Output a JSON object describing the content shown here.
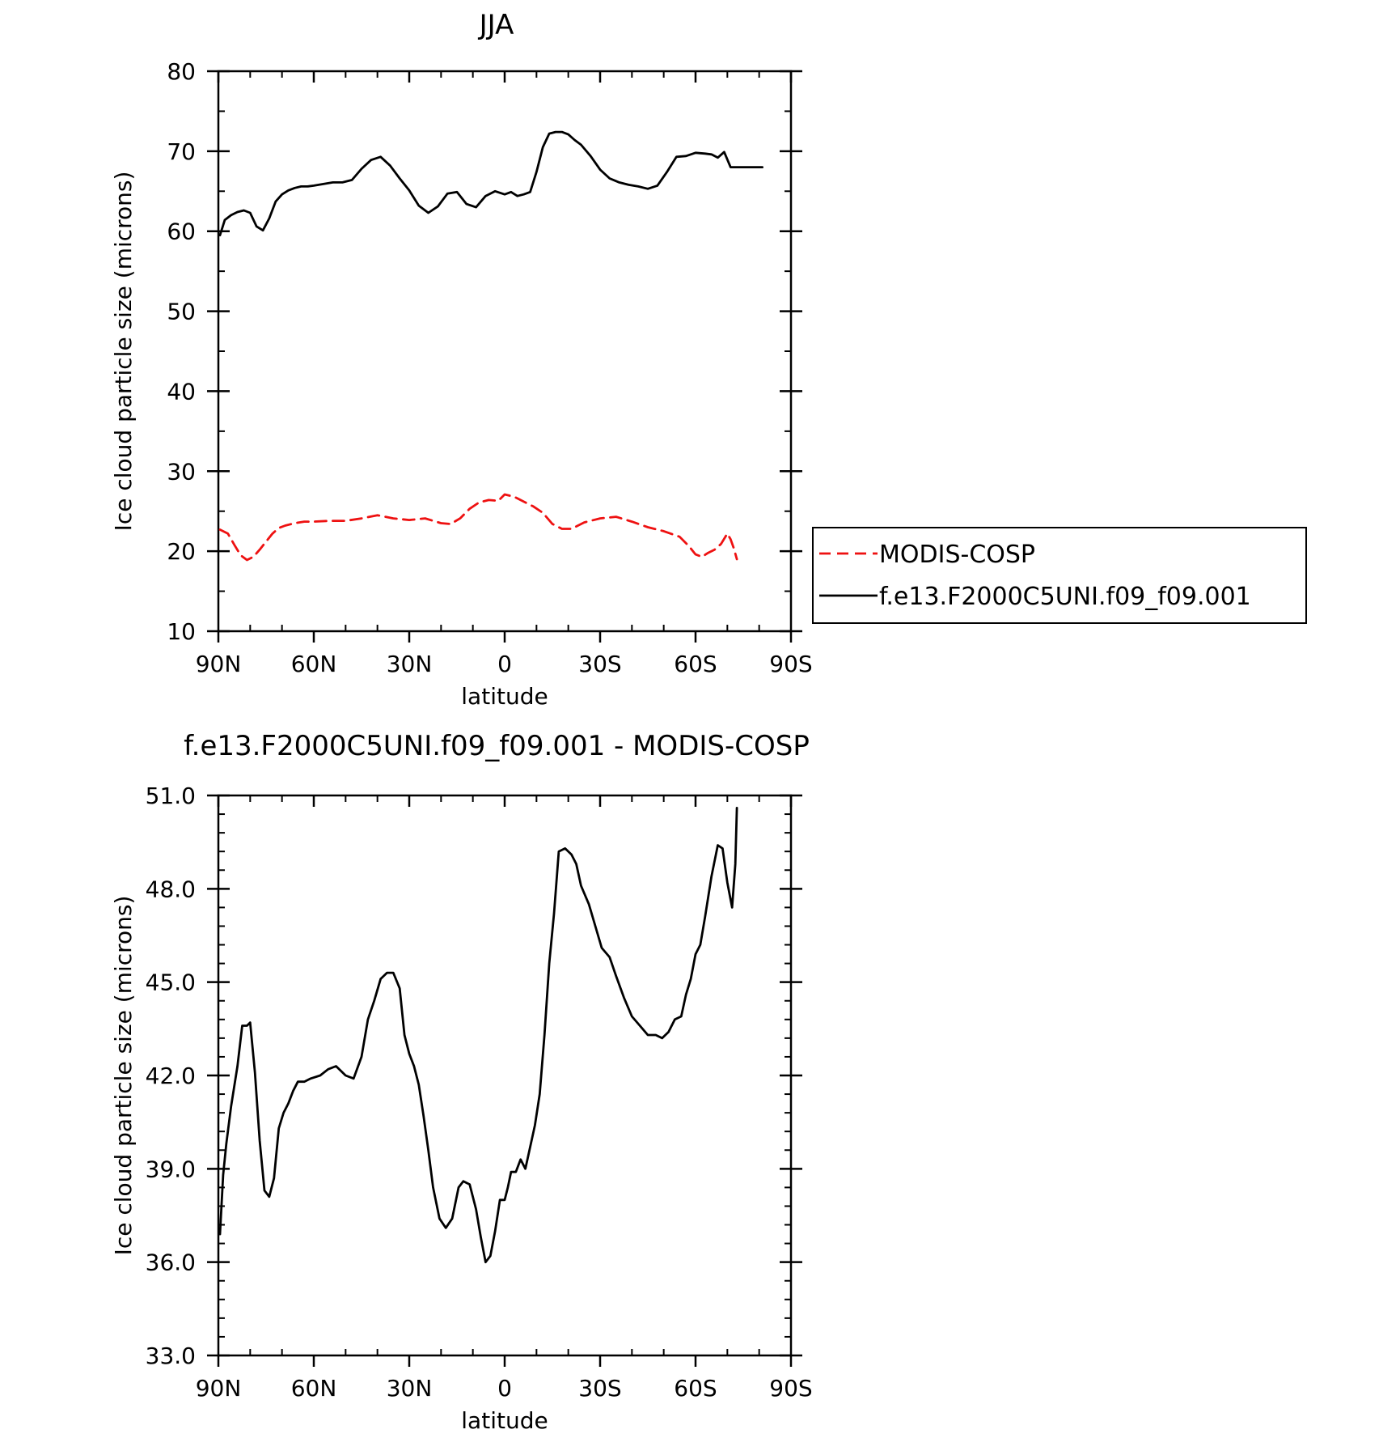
{
  "chart_data": [
    {
      "type": "line",
      "title": "JJA",
      "xlabel": "latitude",
      "ylabel": "Ice cloud particle size (microns)",
      "xlim": [
        90,
        -90
      ],
      "ylim": [
        10,
        80
      ],
      "x_ticks": [
        {
          "value": 90,
          "label": "90N"
        },
        {
          "value": 60,
          "label": "60N"
        },
        {
          "value": 30,
          "label": "30N"
        },
        {
          "value": 0,
          "label": "0"
        },
        {
          "value": -30,
          "label": "30S"
        },
        {
          "value": -60,
          "label": "60S"
        },
        {
          "value": -90,
          "label": "90S"
        }
      ],
      "y_ticks": [
        {
          "value": 10,
          "label": "10"
        },
        {
          "value": 20,
          "label": "20"
        },
        {
          "value": 30,
          "label": "30"
        },
        {
          "value": 40,
          "label": "40"
        },
        {
          "value": 50,
          "label": "50"
        },
        {
          "value": 60,
          "label": "60"
        },
        {
          "value": 70,
          "label": "70"
        },
        {
          "value": 80,
          "label": "80"
        }
      ],
      "legend": {
        "placement": "right"
      },
      "series": [
        {
          "name": "MODIS-COSP",
          "color": "#ee1111",
          "dash": "dashed",
          "x": [
            89.5,
            87,
            85,
            83,
            81,
            79,
            77,
            75,
            73,
            71,
            69,
            66,
            63,
            60,
            55,
            50,
            45,
            40,
            35,
            30,
            25,
            20,
            17,
            14,
            11,
            8,
            5,
            2,
            0,
            -3,
            -6,
            -9,
            -12,
            -15,
            -18,
            -21,
            -25,
            -30,
            -35,
            -40,
            -45,
            -50,
            -55,
            -58,
            -60,
            -62,
            -64,
            -66,
            -68,
            -70,
            -71,
            -72,
            -73
          ],
          "y": [
            22.7,
            22.2,
            20.8,
            19.5,
            18.9,
            19.3,
            20.2,
            21.2,
            22.2,
            22.9,
            23.2,
            23.5,
            23.7,
            23.7,
            23.8,
            23.8,
            24.1,
            24.5,
            24.1,
            23.9,
            24.1,
            23.5,
            23.4,
            24.1,
            25.3,
            26.1,
            26.4,
            26.3,
            27.1,
            26.8,
            26.2,
            25.6,
            24.8,
            23.4,
            22.8,
            22.8,
            23.6,
            24.1,
            24.3,
            23.7,
            23.0,
            22.5,
            21.8,
            20.6,
            19.6,
            19.3,
            19.8,
            20.2,
            20.9,
            22.2,
            21.5,
            20.4,
            19.0
          ]
        },
        {
          "name": "f.e13.F2000C5UNI.f09_f09.001",
          "color": "#000000",
          "dash": "solid",
          "x": [
            89.5,
            88,
            86,
            84,
            82,
            80,
            78,
            76,
            74,
            72,
            70,
            68,
            66,
            64,
            62,
            60,
            57,
            54,
            51,
            48,
            45,
            42,
            39,
            36,
            33,
            30,
            27,
            24,
            21,
            18,
            15,
            12,
            9,
            6,
            3,
            0,
            -2,
            -4,
            -6,
            -8,
            -10,
            -12,
            -14,
            -16,
            -18,
            -20,
            -22,
            -24,
            -27,
            -30,
            -33,
            -36,
            -39,
            -42,
            -45,
            -48,
            -51,
            -54,
            -57,
            -60,
            -63,
            -65,
            -67,
            -69,
            -71,
            -74,
            -76,
            -78,
            -80,
            -81
          ],
          "y": [
            59.5,
            61.4,
            62.0,
            62.4,
            62.6,
            62.3,
            60.6,
            60.1,
            61.6,
            63.7,
            64.6,
            65.1,
            65.4,
            65.6,
            65.6,
            65.7,
            65.9,
            66.1,
            66.1,
            66.4,
            67.8,
            68.9,
            69.3,
            68.2,
            66.6,
            65.1,
            63.2,
            62.3,
            63.1,
            64.7,
            64.9,
            63.4,
            63.0,
            64.4,
            65.0,
            64.6,
            64.9,
            64.4,
            64.6,
            64.9,
            67.4,
            70.5,
            72.2,
            72.4,
            72.4,
            72.1,
            71.4,
            70.8,
            69.4,
            67.7,
            66.6,
            66.1,
            65.8,
            65.6,
            65.3,
            65.7,
            67.4,
            69.3,
            69.4,
            69.8,
            69.7,
            69.6,
            69.2,
            69.9,
            68.0,
            68.0,
            68.0,
            68.0,
            68.0,
            68.0
          ]
        }
      ]
    },
    {
      "type": "line",
      "title": "f.e13.F2000C5UNI.f09_f09.001 - MODIS-COSP",
      "xlabel": "latitude",
      "ylabel": "Ice cloud particle size (microns)",
      "xlim": [
        90,
        -90
      ],
      "ylim": [
        33.0,
        51.0
      ],
      "x_ticks": [
        {
          "value": 90,
          "label": "90N"
        },
        {
          "value": 60,
          "label": "60N"
        },
        {
          "value": 30,
          "label": "30N"
        },
        {
          "value": 0,
          "label": "0"
        },
        {
          "value": -30,
          "label": "30S"
        },
        {
          "value": -60,
          "label": "60S"
        },
        {
          "value": -90,
          "label": "90S"
        }
      ],
      "y_ticks": [
        {
          "value": 33.0,
          "label": "33.0"
        },
        {
          "value": 36.0,
          "label": "36.0"
        },
        {
          "value": 39.0,
          "label": "39.0"
        },
        {
          "value": 42.0,
          "label": "42.0"
        },
        {
          "value": 45.0,
          "label": "45.0"
        },
        {
          "value": 48.0,
          "label": "48.0"
        },
        {
          "value": 51.0,
          "label": "51.0"
        }
      ],
      "series": [
        {
          "color": "#000000",
          "dash": "solid",
          "x": [
            89.5,
            88.5,
            87.5,
            86,
            84,
            82.5,
            81,
            80,
            78.5,
            77,
            75.5,
            74,
            72.5,
            71,
            69.5,
            68,
            66.5,
            65,
            63,
            61,
            58,
            55.5,
            53,
            50,
            47.5,
            45,
            43,
            41,
            39,
            37,
            35,
            33,
            31.5,
            30,
            28.5,
            27,
            25.5,
            24,
            22.5,
            20.5,
            18.5,
            16.5,
            14.5,
            13,
            11,
            9,
            7.5,
            6,
            4.5,
            3,
            1.5,
            0,
            -1,
            -2,
            -3.5,
            -5,
            -6.5,
            -8,
            -9.5,
            -11,
            -12.5,
            -14,
            -15.5,
            -17,
            -19,
            -21,
            -22.5,
            -24,
            -26.5,
            -28.5,
            -30.5,
            -33,
            -35,
            -37.5,
            -40,
            -42.5,
            -45,
            -47.5,
            -49.5,
            -51.5,
            -53.5,
            -55.5,
            -57,
            -58.5,
            -60,
            -61.5,
            -63,
            -65,
            -67,
            -68.5,
            -70,
            -71.5,
            -72.5,
            -73
          ],
          "y": [
            36.9,
            38.8,
            39.8,
            41.0,
            42.3,
            43.6,
            43.6,
            43.7,
            42.1,
            39.9,
            38.3,
            38.1,
            38.7,
            40.3,
            40.8,
            41.1,
            41.5,
            41.8,
            41.8,
            41.9,
            42.0,
            42.2,
            42.3,
            42.0,
            41.9,
            42.6,
            43.8,
            44.4,
            45.1,
            45.3,
            45.3,
            44.8,
            43.3,
            42.7,
            42.3,
            41.7,
            40.7,
            39.6,
            38.4,
            37.4,
            37.1,
            37.4,
            38.4,
            38.6,
            38.5,
            37.7,
            36.8,
            36.0,
            36.2,
            37.0,
            38.0,
            38.0,
            38.4,
            38.9,
            38.9,
            39.3,
            39.0,
            39.7,
            40.4,
            41.4,
            43.3,
            45.6,
            47.2,
            49.2,
            49.3,
            49.1,
            48.8,
            48.1,
            47.5,
            46.8,
            46.1,
            45.8,
            45.2,
            44.5,
            43.9,
            43.6,
            43.3,
            43.3,
            43.2,
            43.4,
            43.8,
            43.9,
            44.6,
            45.1,
            45.9,
            46.2,
            47.1,
            48.4,
            49.4,
            49.3,
            48.2,
            47.4,
            48.8,
            50.6
          ]
        }
      ]
    }
  ]
}
